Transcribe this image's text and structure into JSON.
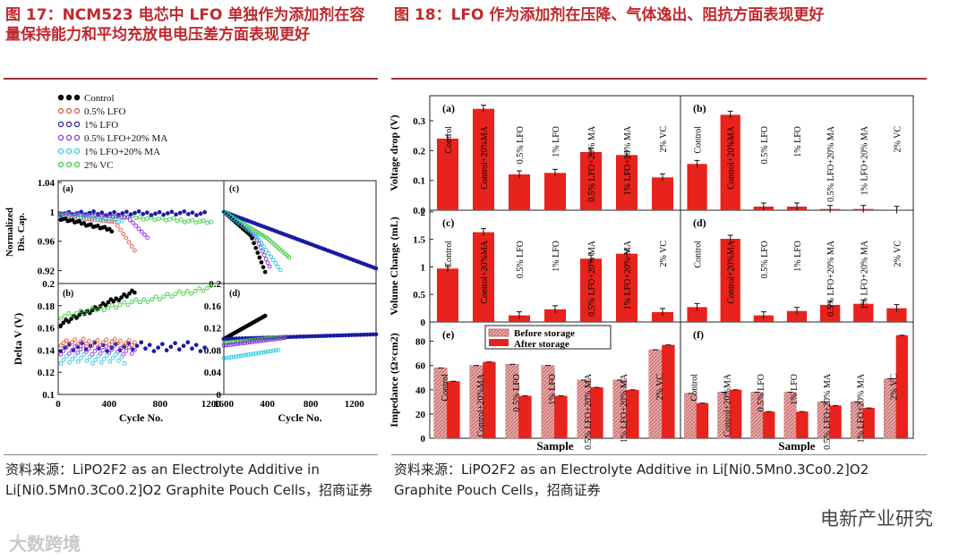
{
  "fig17_title": "图 17：NCM523 电芯中 LFO 单独作为添加剂在容量保持能力和平均充放电电压差方面表现更好",
  "fig18_title": "图 18：LFO 作为添加剂在压降、气体逸出、阻抗方面表现更好",
  "fig17_source": "资料来源：LiPO2F2 as an Electrolyte Additive in Li[Ni0.5Mn0.3Co0.2]O2 Graphite Pouch Cells，招商证券",
  "fig18_source": "资料来源：LiPO2F2 as an Electrolyte Additive in Li[Ni0.5Mn0.3Co0.2]O2 Graphite Pouch Cells，招商证券",
  "watermark": "电新产业研究",
  "watermark2": "大数跨境",
  "colors": {
    "title": "#c0282d",
    "bar": "#e8221c",
    "bar_hatch": "#e8a6a6"
  },
  "chart_data": [
    {
      "type": "scatter",
      "figure": "17",
      "legend": [
        "Control",
        "0.5% LFO",
        "1% LFO",
        "0.5% LFO+20% MA",
        "1% LFO+20% MA",
        "2% VC"
      ],
      "legend_colors": [
        "#000000",
        "#e0503c",
        "#1a1aa6",
        "#8a2be2",
        "#28c8e8",
        "#3cc83c"
      ],
      "panels": [
        {
          "label": "(a)",
          "ylabel": "Normalized Dis. Cap.",
          "yticks": [
            "1.04",
            "1",
            "0.96",
            "0.92"
          ],
          "ylim": [
            0.9,
            1.04
          ]
        },
        {
          "label": "(c)",
          "ylim": [
            0.9,
            1.04
          ]
        },
        {
          "label": "(b)",
          "ylabel": "Delta V (V)",
          "yticks": [
            "0.2",
            "0.18",
            "0.16",
            "0.14",
            "0.12",
            "0.1"
          ],
          "ylim": [
            0.1,
            0.2
          ],
          "xlabel": "Cycle No.",
          "xticks": [
            "0",
            "400",
            "800",
            "1200"
          ],
          "xlim": [
            0,
            1300
          ]
        },
        {
          "label": "(d)",
          "yticks": [
            "0.2",
            "0.16",
            "0.12",
            "0.08",
            "0.04",
            "0"
          ],
          "ylim": [
            0,
            0.2
          ],
          "xlabel": "Cycle No.",
          "xticks": [
            "1600",
            "400",
            "800",
            "1200"
          ],
          "xlim": [
            0,
            1400
          ]
        }
      ]
    },
    {
      "type": "bar",
      "figure": "18",
      "xlabel": "Sample",
      "categories": [
        "Control",
        "Control+20%MA",
        "0.5% LFO",
        "1% LFO",
        "0.5% LFO+20% MA",
        "1% LFO+20% MA",
        "2% VC"
      ],
      "panels": [
        {
          "label": "(a)",
          "ylabel": "Voltage drop (V)",
          "yticks": [
            "0.3",
            "0.2",
            "0.1",
            "0.0"
          ],
          "ylim": [
            0,
            0.36
          ],
          "values": [
            0.24,
            0.34,
            0.12,
            0.125,
            0.195,
            0.185,
            0.11
          ]
        },
        {
          "label": "(b)",
          "ylim": [
            0,
            0.36
          ],
          "values": [
            0.155,
            0.32,
            0.012,
            0.012,
            0.004,
            0.004,
            0.001
          ]
        },
        {
          "label": "(c)",
          "ylabel": "Volume Change (mL)",
          "yticks": [
            "2",
            "1.5",
            "1",
            "0.5",
            "0"
          ],
          "ylim": [
            0,
            1.9
          ],
          "values": [
            0.97,
            1.63,
            0.12,
            0.23,
            1.15,
            1.24,
            0.18
          ]
        },
        {
          "label": "(d)",
          "ylim": [
            0,
            1.9
          ],
          "values": [
            0.27,
            1.51,
            0.12,
            0.2,
            0.31,
            0.33,
            0.25
          ]
        },
        {
          "label": "(e)",
          "ylabel": "Impedance (Ω×cm2)",
          "yticks": [
            "80",
            "60",
            "40",
            "20",
            "0"
          ],
          "ylim": [
            0,
            90
          ],
          "legend": [
            "Before storage",
            "After storage"
          ],
          "series": [
            {
              "name": "Before storage",
              "values": [
                58,
                60,
                61,
                60,
                48,
                48,
                73
              ]
            },
            {
              "name": "After storage",
              "values": [
                47,
                63,
                35,
                35,
                42,
                40,
                77
              ]
            }
          ]
        },
        {
          "label": "(f)",
          "ylim": [
            0,
            90
          ],
          "series": [
            {
              "name": "Before storage",
              "values": [
                37,
                38,
                38,
                38,
                30,
                30,
                49
              ]
            },
            {
              "name": "After storage",
              "values": [
                29,
                40,
                22,
                22,
                27,
                25,
                85
              ]
            }
          ]
        }
      ]
    }
  ]
}
